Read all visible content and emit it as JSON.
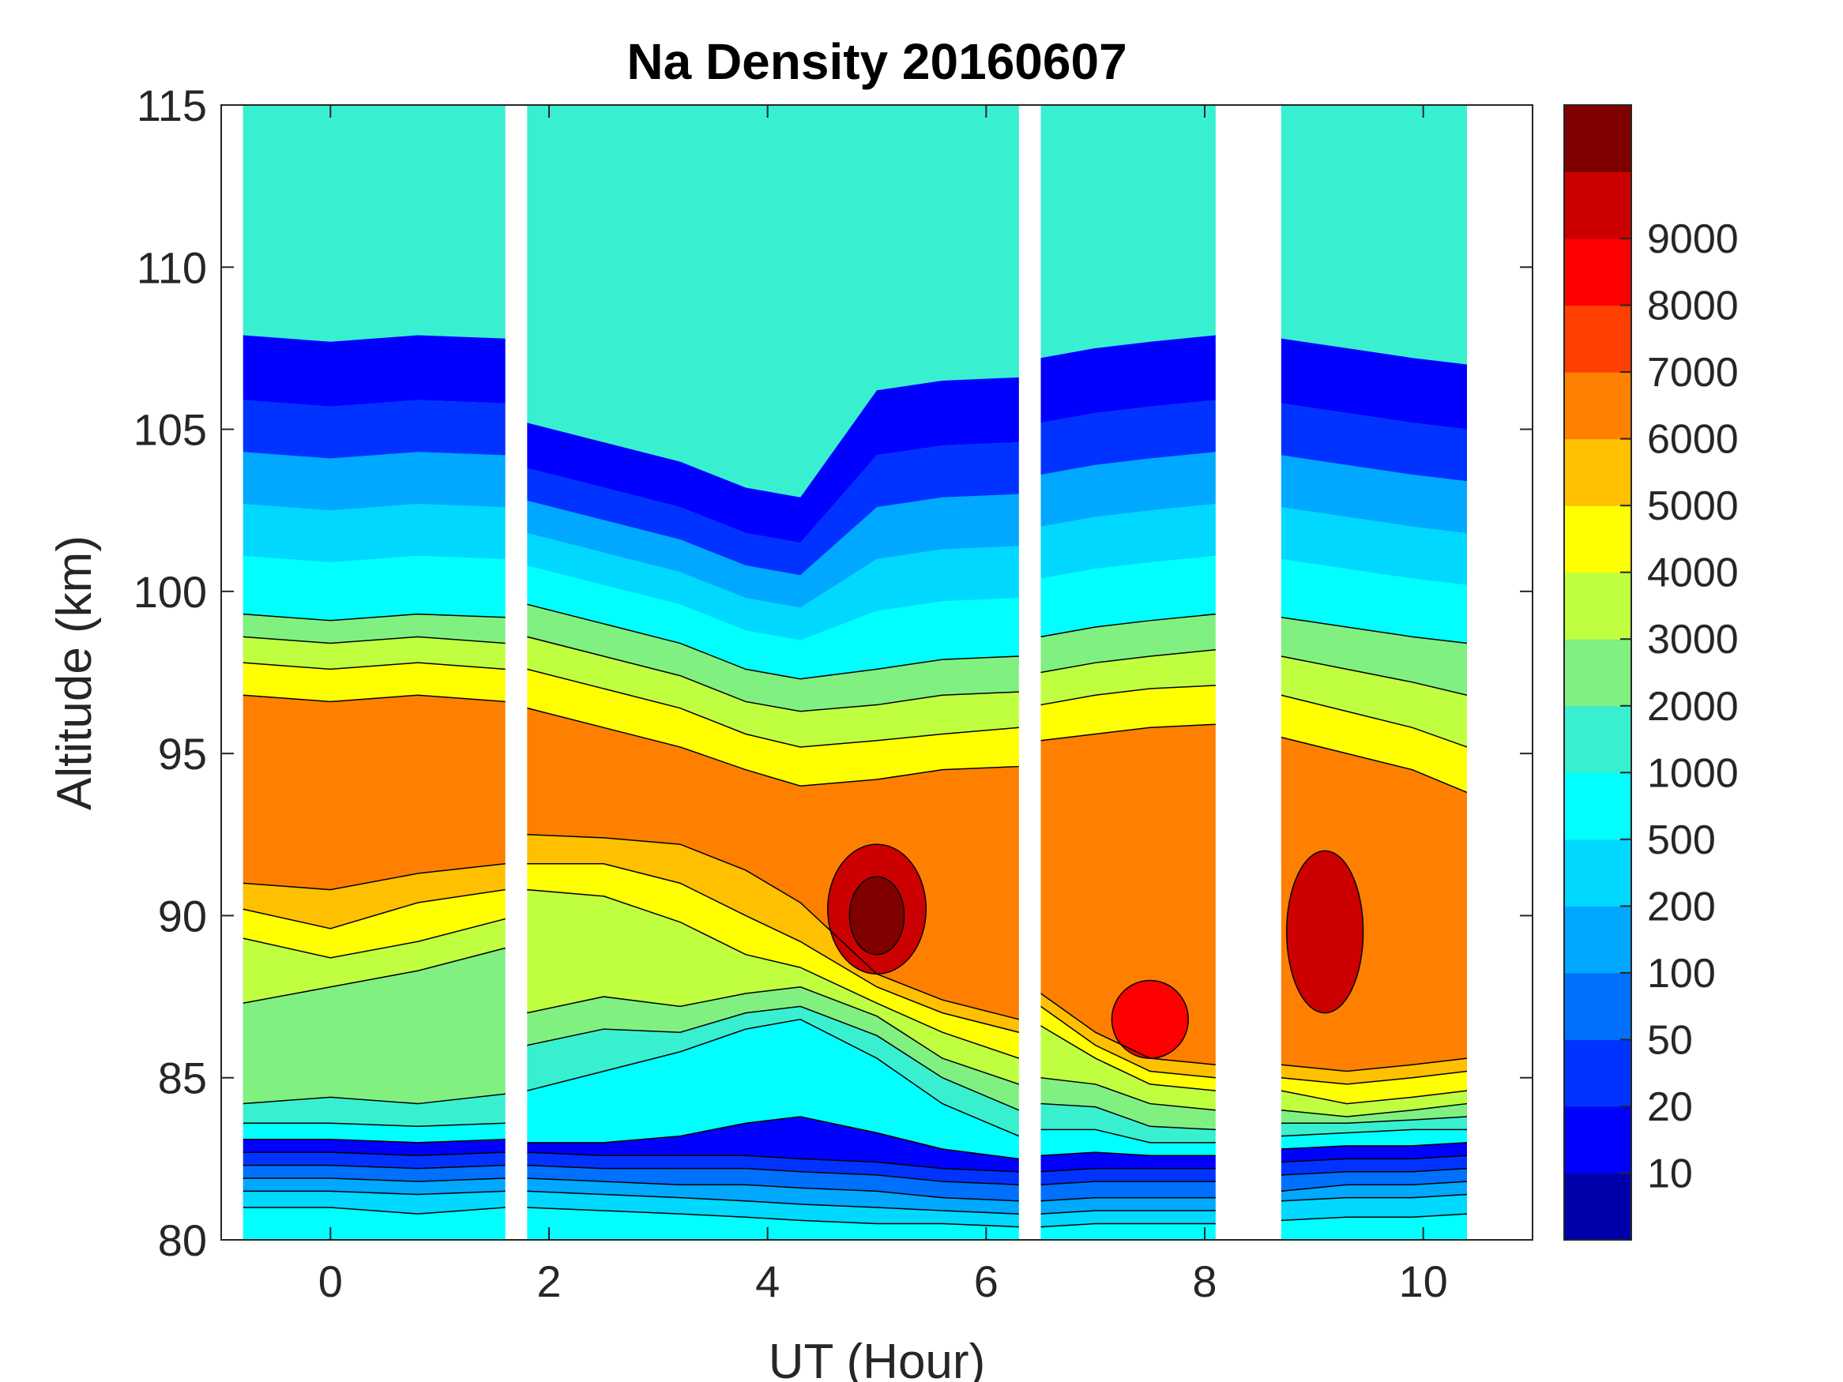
{
  "chart_data": {
    "type": "heatmap",
    "subtype": "filled-contour",
    "title": "Na Density 20160607",
    "xlabel": "UT (Hour)",
    "ylabel": "Altitude (km)",
    "xlim": [
      -1,
      11
    ],
    "ylim": [
      80,
      115
    ],
    "xticks": [
      0,
      2,
      4,
      6,
      8,
      10
    ],
    "yticks": [
      80,
      85,
      90,
      95,
      100,
      105,
      110,
      115
    ],
    "colorbar": {
      "ticks": [
        10,
        20,
        50,
        100,
        200,
        500,
        1000,
        2000,
        3000,
        4000,
        5000,
        6000,
        7000,
        8000,
        9000
      ],
      "levels": 16,
      "colors": [
        "#0000aa",
        "#0000ff",
        "#0033ff",
        "#0070ff",
        "#00a8ff",
        "#00d8ff",
        "#00ffff",
        "#38f0d0",
        "#80f080",
        "#c0ff40",
        "#ffff00",
        "#ffc000",
        "#ff8000",
        "#ff4000",
        "#ff0000",
        "#cc0000",
        "#800000"
      ]
    },
    "data_gaps_ut": [
      [
        1.6,
        1.8
      ],
      [
        6.3,
        6.5
      ],
      [
        8.1,
        8.7
      ],
      [
        10.4,
        11.0
      ]
    ],
    "data_coverage_ut": [
      [
        -0.8,
        1.6
      ],
      [
        1.8,
        6.3
      ],
      [
        6.5,
        8.1
      ],
      [
        8.7,
        10.4
      ]
    ],
    "boundary_levels_altitude_km": {
      "x": [
        -0.8,
        0.0,
        0.8,
        1.6,
        1.8,
        2.5,
        3.2,
        3.8,
        4.3,
        5.0,
        5.6,
        6.3,
        6.5,
        7.0,
        7.5,
        8.1,
        8.7,
        9.3,
        9.9,
        10.4
      ],
      "lines": [
        [
          81.0,
          81.0,
          80.8,
          81.0,
          81.0,
          80.9,
          80.8,
          80.7,
          80.6,
          80.5,
          80.5,
          80.4,
          80.4,
          80.5,
          80.5,
          80.5,
          80.6,
          80.7,
          80.7,
          80.8
        ],
        [
          81.5,
          81.5,
          81.4,
          81.5,
          81.5,
          81.4,
          81.3,
          81.2,
          81.1,
          81.0,
          80.9,
          80.8,
          80.8,
          80.9,
          80.9,
          80.9,
          81.2,
          81.3,
          81.3,
          81.4
        ],
        [
          81.9,
          81.9,
          81.8,
          81.9,
          81.9,
          81.8,
          81.7,
          81.7,
          81.6,
          81.5,
          81.3,
          81.2,
          81.2,
          81.3,
          81.3,
          81.3,
          81.5,
          81.7,
          81.7,
          81.8
        ],
        [
          82.3,
          82.3,
          82.2,
          82.3,
          82.3,
          82.2,
          82.2,
          82.2,
          82.1,
          82.0,
          81.8,
          81.7,
          81.7,
          81.8,
          81.8,
          81.8,
          82.0,
          82.1,
          82.1,
          82.2
        ],
        [
          82.7,
          82.7,
          82.6,
          82.7,
          82.7,
          82.6,
          82.6,
          82.6,
          82.5,
          82.4,
          82.2,
          82.1,
          82.1,
          82.2,
          82.2,
          82.2,
          82.4,
          82.5,
          82.5,
          82.6
        ],
        [
          83.1,
          83.1,
          83.0,
          83.1,
          83.0,
          83.0,
          83.2,
          83.6,
          83.8,
          83.3,
          82.8,
          82.5,
          82.6,
          82.7,
          82.6,
          82.6,
          82.8,
          82.9,
          82.9,
          83.0
        ],
        [
          83.6,
          83.6,
          83.5,
          83.6,
          84.6,
          85.2,
          85.8,
          86.5,
          86.8,
          85.6,
          84.2,
          83.2,
          83.4,
          83.4,
          83.0,
          83.0,
          83.2,
          83.3,
          83.4,
          83.4
        ],
        [
          84.2,
          84.4,
          84.2,
          84.5,
          86.0,
          86.5,
          86.4,
          87.0,
          87.2,
          86.3,
          85.0,
          84.0,
          84.2,
          84.1,
          83.5,
          83.4,
          83.6,
          83.6,
          83.7,
          83.8
        ],
        [
          87.3,
          87.8,
          88.3,
          89.0,
          87.0,
          87.5,
          87.2,
          87.6,
          87.8,
          86.9,
          85.6,
          84.8,
          85.0,
          84.8,
          84.2,
          84.0,
          84.0,
          83.8,
          84.0,
          84.2
        ],
        [
          89.3,
          88.7,
          89.2,
          89.9,
          90.8,
          90.6,
          89.8,
          88.8,
          88.4,
          87.3,
          86.4,
          85.6,
          86.6,
          85.6,
          84.8,
          84.6,
          84.6,
          84.2,
          84.4,
          84.6
        ],
        [
          90.2,
          89.6,
          90.4,
          90.8,
          91.6,
          91.6,
          91.0,
          90.0,
          89.2,
          87.8,
          87.0,
          86.4,
          87.2,
          86.0,
          85.2,
          85.0,
          85.0,
          84.8,
          85.0,
          85.2
        ],
        [
          91.0,
          90.8,
          91.3,
          91.6,
          92.5,
          92.4,
          92.2,
          91.4,
          90.4,
          88.2,
          87.4,
          86.8,
          87.6,
          86.4,
          85.6,
          85.4,
          85.4,
          85.2,
          85.4,
          85.6
        ],
        [
          96.8,
          96.6,
          96.8,
          96.6,
          96.4,
          95.8,
          95.2,
          94.5,
          94.0,
          94.2,
          94.5,
          94.6,
          95.4,
          95.6,
          95.8,
          95.9,
          95.5,
          95.0,
          94.5,
          93.8
        ],
        [
          97.8,
          97.6,
          97.8,
          97.6,
          97.6,
          97.0,
          96.4,
          95.6,
          95.2,
          95.4,
          95.6,
          95.8,
          96.5,
          96.8,
          97.0,
          97.1,
          96.8,
          96.3,
          95.8,
          95.2
        ],
        [
          98.6,
          98.4,
          98.6,
          98.4,
          98.6,
          98.0,
          97.4,
          96.6,
          96.3,
          96.5,
          96.8,
          96.9,
          97.5,
          97.8,
          98.0,
          98.2,
          98.0,
          97.6,
          97.2,
          96.8
        ],
        [
          99.3,
          99.1,
          99.3,
          99.2,
          99.6,
          99.0,
          98.4,
          97.6,
          97.3,
          97.6,
          97.9,
          98.0,
          98.6,
          98.9,
          99.1,
          99.3,
          99.2,
          98.9,
          98.6,
          98.4
        ]
      ]
    }
  }
}
